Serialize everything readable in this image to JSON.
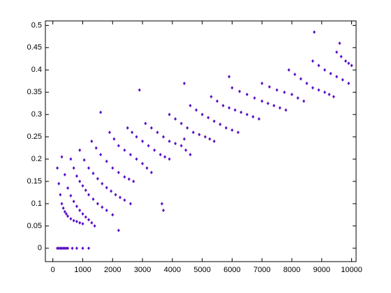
{
  "chart_data": {
    "type": "scatter",
    "color": "#5b10c8",
    "x": [
      150,
      200,
      250,
      300,
      350,
      400,
      450,
      500,
      650,
      800,
      1000,
      1200,
      150,
      200,
      250,
      300,
      350,
      400,
      450,
      500,
      600,
      700,
      800,
      900,
      1000,
      300,
      400,
      500,
      600,
      700,
      800,
      900,
      1000,
      1100,
      1200,
      1300,
      1400,
      600,
      700,
      800,
      900,
      1000,
      1100,
      1200,
      1350,
      1500,
      1650,
      1800,
      2000,
      900,
      1050,
      1200,
      1350,
      1500,
      1650,
      1800,
      1950,
      2100,
      2250,
      2400,
      2600,
      1300,
      1450,
      1600,
      1800,
      2000,
      2200,
      2400,
      2550,
      2700,
      1900,
      2050,
      2200,
      2400,
      2600,
      2800,
      3000,
      3150,
      3300,
      2500,
      2650,
      2800,
      3000,
      3200,
      3400,
      3600,
      3750,
      3900,
      3100,
      3300,
      3500,
      3700,
      3900,
      4100,
      4300,
      4450,
      4600,
      3900,
      4100,
      4300,
      4500,
      4700,
      4900,
      5100,
      5250,
      5400,
      4600,
      4800,
      5000,
      5200,
      5400,
      5600,
      5800,
      6000,
      6200,
      5300,
      5500,
      5700,
      5900,
      6100,
      6300,
      6500,
      6700,
      6900,
      6000,
      6250,
      6500,
      6750,
      7000,
      7200,
      7400,
      7600,
      7800,
      7000,
      7250,
      7500,
      7750,
      8000,
      8200,
      8400,
      7900,
      8100,
      8300,
      8500,
      8700,
      8900,
      9100,
      9250,
      9400,
      8700,
      8900,
      9100,
      9300,
      9500,
      9700,
      9900,
      9500,
      9650,
      9800,
      9900,
      10000,
      1600,
      2900,
      4400,
      8750,
      9600,
      2200,
      3700,
      5900,
      3650,
      4400
    ],
    "values": [
      0,
      0,
      0,
      0,
      0,
      0,
      0,
      0,
      0,
      0,
      0,
      0,
      0.18,
      0.145,
      0.12,
      0.1,
      0.09,
      0.082,
      0.077,
      0.072,
      0.066,
      0.062,
      0.06,
      0.057,
      0.055,
      0.205,
      0.165,
      0.135,
      0.118,
      0.105,
      0.094,
      0.085,
      0.077,
      0.07,
      0.064,
      0.057,
      0.05,
      0.2,
      0.18,
      0.162,
      0.15,
      0.14,
      0.13,
      0.12,
      0.11,
      0.1,
      0.092,
      0.085,
      0.075,
      0.22,
      0.198,
      0.18,
      0.168,
      0.156,
      0.145,
      0.136,
      0.128,
      0.12,
      0.114,
      0.108,
      0.1,
      0.24,
      0.225,
      0.21,
      0.195,
      0.18,
      0.17,
      0.16,
      0.155,
      0.15,
      0.26,
      0.245,
      0.23,
      0.22,
      0.21,
      0.2,
      0.19,
      0.18,
      0.17,
      0.27,
      0.26,
      0.25,
      0.24,
      0.23,
      0.22,
      0.21,
      0.205,
      0.2,
      0.28,
      0.27,
      0.26,
      0.25,
      0.24,
      0.235,
      0.23,
      0.22,
      0.21,
      0.3,
      0.29,
      0.28,
      0.27,
      0.26,
      0.255,
      0.25,
      0.245,
      0.24,
      0.32,
      0.31,
      0.3,
      0.293,
      0.285,
      0.278,
      0.27,
      0.265,
      0.26,
      0.34,
      0.33,
      0.32,
      0.315,
      0.31,
      0.305,
      0.3,
      0.295,
      0.29,
      0.36,
      0.352,
      0.345,
      0.337,
      0.33,
      0.325,
      0.32,
      0.315,
      0.31,
      0.37,
      0.362,
      0.355,
      0.35,
      0.345,
      0.337,
      0.33,
      0.4,
      0.39,
      0.38,
      0.37,
      0.36,
      0.355,
      0.35,
      0.345,
      0.34,
      0.42,
      0.41,
      0.4,
      0.392,
      0.385,
      0.378,
      0.37,
      0.44,
      0.43,
      0.42,
      0.415,
      0.41,
      0.305,
      0.355,
      0.37,
      0.485,
      0.46,
      0.04,
      0.085,
      0.385,
      0.1,
      0.245
    ],
    "xlim": [
      -250,
      10150
    ],
    "ylim": [
      -0.03,
      0.51
    ],
    "xticks": [
      0,
      1000,
      2000,
      3000,
      4000,
      5000,
      6000,
      7000,
      8000,
      9000,
      10000
    ],
    "yticks": [
      0,
      0.05,
      0.1,
      0.15,
      0.2,
      0.25,
      0.3,
      0.35,
      0.4,
      0.45,
      0.5
    ]
  }
}
